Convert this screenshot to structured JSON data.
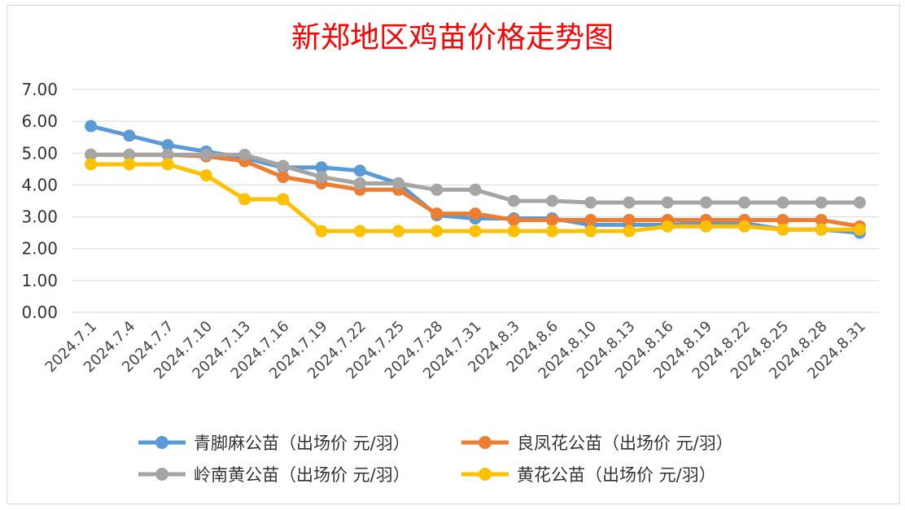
{
  "chart_data": {
    "type": "line",
    "title": "新郑地区鸡苗价格走势图",
    "xlabel": "",
    "ylabel": "",
    "ylim": [
      0,
      7
    ],
    "yticks": [
      "0.00",
      "1.00",
      "2.00",
      "3.00",
      "4.00",
      "5.00",
      "6.00",
      "7.00"
    ],
    "grid": true,
    "legend_position": "bottom",
    "categories": [
      "2024.7.1",
      "2024.7.4",
      "2024.7.7",
      "2024.7.10",
      "2024.7.13",
      "2024.7.16",
      "2024.7.19",
      "2024.7.22",
      "2024.7.25",
      "2024.7.28",
      "2024.7.31",
      "2024.8.3",
      "2024.8.6",
      "2024.8.10",
      "2024.8.13",
      "2024.8.16",
      "2024.8.19",
      "2024.8.22",
      "2024.8.25",
      "2024.8.28",
      "2024.8.31"
    ],
    "series": [
      {
        "name": "青脚麻公苗（出场价 元/羽）",
        "color": "#5b9bd5",
        "values": [
          5.85,
          5.55,
          5.25,
          5.05,
          4.85,
          4.55,
          4.55,
          4.45,
          4.05,
          3.05,
          2.95,
          2.95,
          2.95,
          2.75,
          2.75,
          2.75,
          2.8,
          2.8,
          2.6,
          2.6,
          2.5
        ]
      },
      {
        "name": "良凤花公苗（出场价 元/羽）",
        "color": "#ed7d31",
        "values": [
          4.95,
          4.95,
          4.95,
          4.9,
          4.75,
          4.25,
          4.05,
          3.85,
          3.85,
          3.1,
          3.1,
          2.9,
          2.9,
          2.9,
          2.9,
          2.9,
          2.9,
          2.9,
          2.9,
          2.9,
          2.7
        ]
      },
      {
        "name": "岭南黄公苗（出场价 元/羽）",
        "color": "#a5a5a5",
        "values": [
          4.95,
          4.95,
          4.95,
          4.95,
          4.95,
          4.6,
          4.25,
          4.05,
          4.05,
          3.85,
          3.85,
          3.5,
          3.5,
          3.45,
          3.45,
          3.45,
          3.45,
          3.45,
          3.45,
          3.45,
          3.45
        ]
      },
      {
        "name": "黄花公苗（出场价 元/羽）",
        "color": "#ffc000",
        "values": [
          4.65,
          4.65,
          4.65,
          4.3,
          3.55,
          3.55,
          2.55,
          2.55,
          2.55,
          2.55,
          2.55,
          2.55,
          2.55,
          2.55,
          2.55,
          2.7,
          2.7,
          2.7,
          2.6,
          2.6,
          2.6
        ]
      }
    ]
  }
}
